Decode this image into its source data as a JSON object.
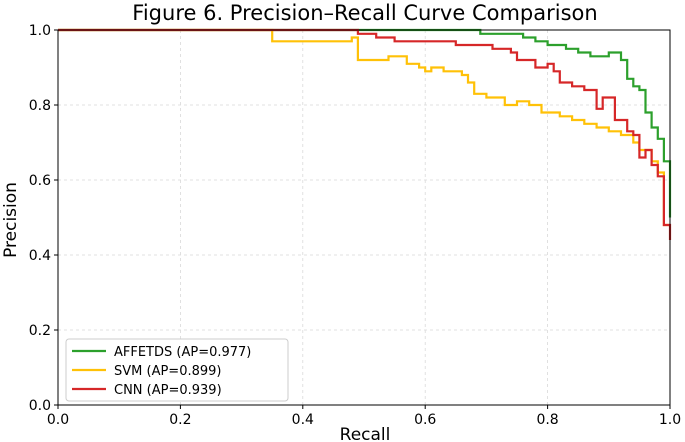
{
  "chart_data": {
    "type": "line",
    "title": "Figure 6. Precision–Recall Curve Comparison",
    "xlabel": "Recall",
    "ylabel": "Precision",
    "xlim": [
      0.0,
      1.0
    ],
    "ylim": [
      0.0,
      1.0
    ],
    "xticks": [
      "0.0",
      "0.2",
      "0.4",
      "0.6",
      "0.8",
      "1.0"
    ],
    "yticks": [
      "0.0",
      "0.2",
      "0.4",
      "0.6",
      "0.8",
      "1.0"
    ],
    "grid": true,
    "legend_position": "lower-left",
    "series": [
      {
        "name": "AFFETDS (AP=0.977)",
        "color": "#2ca02c",
        "x": [
          0.0,
          0.69,
          0.69,
          0.76,
          0.76,
          0.78,
          0.78,
          0.8,
          0.8,
          0.83,
          0.83,
          0.85,
          0.85,
          0.87,
          0.87,
          0.9,
          0.9,
          0.92,
          0.92,
          0.93,
          0.93,
          0.94,
          0.94,
          0.95,
          0.95,
          0.96,
          0.96,
          0.97,
          0.97,
          0.98,
          0.98,
          0.99,
          0.99,
          1.0,
          1.0
        ],
        "y": [
          1.0,
          1.0,
          0.99,
          0.99,
          0.98,
          0.98,
          0.97,
          0.97,
          0.96,
          0.96,
          0.95,
          0.95,
          0.94,
          0.94,
          0.93,
          0.93,
          0.94,
          0.94,
          0.92,
          0.92,
          0.87,
          0.87,
          0.85,
          0.85,
          0.84,
          0.84,
          0.78,
          0.78,
          0.74,
          0.74,
          0.71,
          0.71,
          0.65,
          0.65,
          0.5
        ]
      },
      {
        "name": "SVM (AP=0.899)",
        "color": "#ffc107",
        "x": [
          0.0,
          0.35,
          0.35,
          0.48,
          0.48,
          0.49,
          0.49,
          0.54,
          0.54,
          0.57,
          0.57,
          0.59,
          0.59,
          0.6,
          0.6,
          0.61,
          0.61,
          0.63,
          0.63,
          0.66,
          0.66,
          0.67,
          0.67,
          0.68,
          0.68,
          0.7,
          0.7,
          0.73,
          0.73,
          0.75,
          0.75,
          0.77,
          0.77,
          0.79,
          0.79,
          0.82,
          0.82,
          0.84,
          0.84,
          0.86,
          0.86,
          0.88,
          0.88,
          0.9,
          0.9,
          0.92,
          0.92,
          0.94,
          0.94,
          0.95,
          0.95,
          0.97,
          0.97,
          0.98,
          0.98,
          0.99,
          0.99,
          1.0
        ],
        "y": [
          1.0,
          1.0,
          0.97,
          0.97,
          0.98,
          0.98,
          0.92,
          0.92,
          0.93,
          0.93,
          0.91,
          0.91,
          0.9,
          0.9,
          0.89,
          0.89,
          0.9,
          0.9,
          0.89,
          0.89,
          0.88,
          0.88,
          0.86,
          0.86,
          0.83,
          0.83,
          0.82,
          0.82,
          0.8,
          0.8,
          0.81,
          0.81,
          0.8,
          0.8,
          0.78,
          0.78,
          0.77,
          0.77,
          0.76,
          0.76,
          0.75,
          0.75,
          0.74,
          0.74,
          0.73,
          0.73,
          0.72,
          0.72,
          0.7,
          0.7,
          0.68,
          0.68,
          0.65,
          0.65,
          0.62,
          0.62,
          0.48,
          0.48
        ]
      },
      {
        "name": "CNN (AP=0.939)",
        "color": "#d62728",
        "x": [
          0.0,
          0.49,
          0.49,
          0.52,
          0.52,
          0.55,
          0.55,
          0.65,
          0.65,
          0.71,
          0.71,
          0.74,
          0.74,
          0.75,
          0.75,
          0.78,
          0.78,
          0.8,
          0.8,
          0.81,
          0.81,
          0.82,
          0.82,
          0.84,
          0.84,
          0.86,
          0.86,
          0.88,
          0.88,
          0.89,
          0.89,
          0.91,
          0.91,
          0.93,
          0.93,
          0.94,
          0.94,
          0.95,
          0.95,
          0.96,
          0.96,
          0.97,
          0.97,
          0.98,
          0.98,
          0.99,
          0.99,
          1.0,
          1.0
        ],
        "y": [
          1.0,
          1.0,
          0.99,
          0.99,
          0.98,
          0.98,
          0.97,
          0.97,
          0.96,
          0.96,
          0.95,
          0.95,
          0.94,
          0.94,
          0.92,
          0.92,
          0.9,
          0.9,
          0.91,
          0.91,
          0.89,
          0.89,
          0.86,
          0.86,
          0.85,
          0.85,
          0.84,
          0.84,
          0.79,
          0.79,
          0.82,
          0.82,
          0.76,
          0.76,
          0.73,
          0.73,
          0.72,
          0.72,
          0.66,
          0.66,
          0.68,
          0.68,
          0.64,
          0.64,
          0.61,
          0.61,
          0.48,
          0.48,
          0.44
        ]
      }
    ]
  }
}
